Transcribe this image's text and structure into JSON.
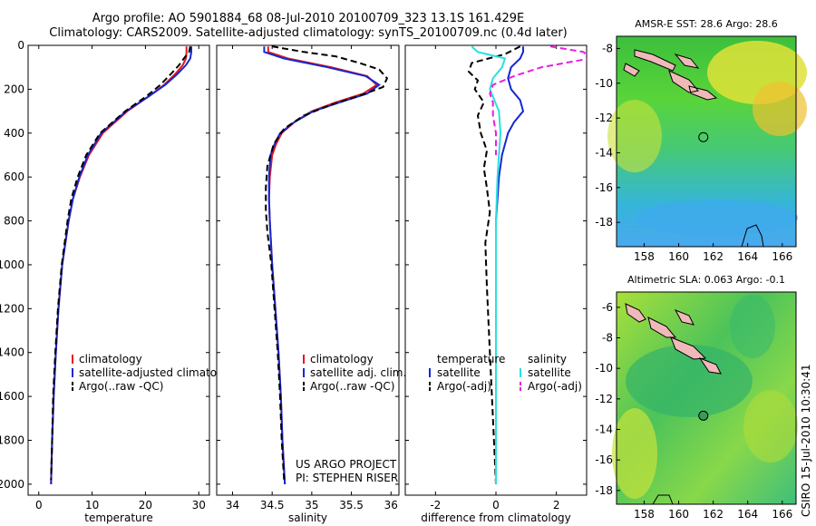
{
  "header": {
    "line1": "Argo profile: AO 5901884_68 08-Jul-2010 20100709_323 13.1S 161.429E",
    "line2": "Climatology: CARS2009. Satellite-adjusted climatology: synTS_20100709.nc (0.4d later)"
  },
  "colors": {
    "climatology": "#e8141c",
    "satellite": "#1428d2",
    "argo": "#000000",
    "salinity_sat": "#2ae0e0",
    "salinity_argo": "#e81ee0"
  },
  "chart_data": [
    {
      "type": "line",
      "panel": "temperature",
      "xlabel": "temperature",
      "ylabel": "",
      "xlim": [
        -2,
        32
      ],
      "ylim": [
        2050,
        0
      ],
      "xticks": [
        0,
        10,
        20,
        30
      ],
      "yticks": [
        0,
        200,
        400,
        600,
        800,
        1000,
        1200,
        1400,
        1600,
        1800,
        2000
      ],
      "legend": [
        "climatology",
        "satellite-adjusted climatology",
        "Argo(..raw -QC)"
      ],
      "legend_position": "lower-center",
      "series": [
        {
          "name": "climatology",
          "color": "#e8141c",
          "style": "solid",
          "depth": [
            5,
            30,
            60,
            90,
            130,
            180,
            230,
            300,
            400,
            500,
            600,
            700,
            800,
            1000,
            1200,
            1400,
            1600,
            1800,
            2000
          ],
          "values": [
            27.7,
            27.7,
            27.6,
            27.0,
            25.6,
            23.5,
            20.8,
            16.6,
            12.0,
            9.4,
            7.7,
            6.4,
            5.6,
            4.4,
            3.7,
            3.2,
            2.8,
            2.5,
            2.3
          ]
        },
        {
          "name": "satellite-adjusted climatology",
          "color": "#1428d2",
          "style": "solid",
          "depth": [
            5,
            30,
            60,
            90,
            130,
            180,
            230,
            300,
            400,
            500,
            600,
            700,
            800,
            1000,
            1200,
            1400,
            1600,
            1800,
            2000
          ],
          "values": [
            28.6,
            28.6,
            28.4,
            27.6,
            26.0,
            23.7,
            20.8,
            16.4,
            11.7,
            9.2,
            7.6,
            6.4,
            5.6,
            4.4,
            3.7,
            3.2,
            2.8,
            2.5,
            2.3
          ]
        },
        {
          "name": "Argo(..raw -QC)",
          "color": "#000000",
          "style": "dash",
          "depth": [
            5,
            30,
            60,
            90,
            130,
            180,
            230,
            300,
            400,
            500,
            600,
            700,
            800,
            1000,
            1200,
            1400,
            1600,
            1800,
            1980
          ],
          "values": [
            28.4,
            28.2,
            27.2,
            26.3,
            24.8,
            22.8,
            20.3,
            16.2,
            11.5,
            8.9,
            7.3,
            6.1,
            5.4,
            4.3,
            3.6,
            3.1,
            2.7,
            2.5,
            2.3
          ]
        }
      ]
    },
    {
      "type": "line",
      "panel": "salinity",
      "xlabel": "salinity",
      "ylabel": "",
      "xlim": [
        33.8,
        36.1
      ],
      "ylim": [
        2050,
        0
      ],
      "xticks": [
        34,
        34.5,
        35,
        35.5,
        36
      ],
      "yticks": [
        0,
        200,
        400,
        600,
        800,
        1000,
        1200,
        1400,
        1600,
        1800,
        2000
      ],
      "legend": [
        "climatology",
        "satellite adj. clim.",
        "Argo(..raw -QC)"
      ],
      "legend_position": "lower-right",
      "annotations": [
        "US ARGO PROJECT",
        "PI: STEPHEN RISER"
      ],
      "series": [
        {
          "name": "climatology",
          "color": "#e8141c",
          "style": "solid",
          "depth": [
            5,
            30,
            60,
            100,
            140,
            180,
            220,
            260,
            300,
            350,
            400,
            450,
            500,
            600,
            700,
            800,
            1000,
            1200,
            1400,
            1600,
            1800,
            2000
          ],
          "values": [
            34.45,
            34.45,
            34.7,
            35.25,
            35.7,
            35.82,
            35.65,
            35.3,
            35.0,
            34.78,
            34.62,
            34.55,
            34.5,
            34.47,
            34.46,
            34.47,
            34.5,
            34.54,
            34.58,
            34.61,
            34.63,
            34.66
          ]
        },
        {
          "name": "satellite adj. clim.",
          "color": "#1428d2",
          "style": "solid",
          "depth": [
            5,
            30,
            60,
            100,
            140,
            180,
            220,
            260,
            300,
            350,
            400,
            450,
            500,
            600,
            700,
            800,
            1000,
            1200,
            1400,
            1600,
            1800,
            2000
          ],
          "values": [
            34.4,
            34.4,
            34.65,
            35.2,
            35.68,
            35.85,
            35.7,
            35.35,
            35.02,
            34.78,
            34.6,
            34.53,
            34.48,
            34.46,
            34.46,
            34.47,
            34.5,
            34.54,
            34.58,
            34.61,
            34.63,
            34.66
          ]
        },
        {
          "name": "Argo(..raw -QC)",
          "color": "#000000",
          "style": "dash",
          "depth": [
            5,
            30,
            50,
            80,
            110,
            150,
            190,
            230,
            270,
            320,
            380,
            450,
            550,
            650,
            750,
            850,
            1000,
            1200,
            1400,
            1600,
            1800,
            1980
          ],
          "values": [
            34.5,
            34.9,
            35.3,
            35.6,
            35.85,
            35.95,
            35.9,
            35.6,
            35.25,
            34.9,
            34.65,
            34.52,
            34.44,
            34.42,
            34.42,
            34.44,
            34.49,
            34.53,
            34.57,
            34.6,
            34.62,
            34.65
          ]
        }
      ]
    },
    {
      "type": "line",
      "panel": "difference",
      "xlabel": "difference from climatology",
      "ylabel": "",
      "xlim": [
        -3,
        3
      ],
      "ylim": [
        2050,
        0
      ],
      "xticks": [
        -2,
        0,
        2
      ],
      "yticks": [
        0,
        200,
        400,
        600,
        800,
        1000,
        1200,
        1400,
        1600,
        1800,
        2000
      ],
      "legend_groups": [
        {
          "heading": "temperature",
          "items": [
            "satellite",
            "Argo(-adj)"
          ]
        },
        {
          "heading": "salinity",
          "items": [
            "satellite",
            "Argo(-adj)"
          ]
        }
      ],
      "series": [
        {
          "name": "temperature satellite",
          "color": "#1428d2",
          "style": "solid",
          "depth": [
            5,
            30,
            60,
            100,
            150,
            200,
            250,
            300,
            350,
            400,
            450,
            500,
            600,
            700,
            800,
            1000,
            1200,
            1600,
            2000
          ],
          "values": [
            0.9,
            0.9,
            0.8,
            0.5,
            0.4,
            0.5,
            0.8,
            0.9,
            0.6,
            0.4,
            0.3,
            0.2,
            0.1,
            0.05,
            0.0,
            0.0,
            0.0,
            0.0,
            0.0
          ]
        },
        {
          "name": "temperature Argo(-adj)",
          "color": "#000000",
          "style": "dash",
          "depth": [
            5,
            40,
            80,
            120,
            160,
            200,
            260,
            320,
            400,
            480,
            560,
            650,
            760,
            900,
            1100,
            1400,
            1700,
            2000
          ],
          "values": [
            0.8,
            0.3,
            -0.8,
            -0.9,
            -0.6,
            -0.7,
            -0.4,
            -0.6,
            -0.5,
            -0.3,
            -0.4,
            -0.3,
            -0.2,
            -0.35,
            -0.3,
            -0.2,
            -0.1,
            0.0
          ]
        },
        {
          "name": "salinity satellite",
          "color": "#2ae0e0",
          "style": "solid",
          "depth": [
            5,
            30,
            60,
            100,
            150,
            200,
            300,
            400,
            500,
            600,
            800,
            1000,
            1500,
            2000
          ],
          "values": [
            -0.8,
            -0.6,
            0.3,
            0.2,
            -0.1,
            -0.2,
            0.1,
            0.15,
            0.1,
            0.05,
            0.0,
            0.0,
            0.0,
            0.0
          ]
        },
        {
          "name": "salinity Argo(-adj)",
          "color": "#e81ee0",
          "style": "dash",
          "depth": [
            5,
            30,
            60,
            100,
            140,
            180,
            220,
            260,
            320,
            400,
            500
          ],
          "values": [
            1.8,
            2.9,
            3.1,
            1.5,
            0.6,
            -0.1,
            -0.2,
            -0.1,
            -0.1,
            0.0,
            0.0
          ]
        }
      ]
    }
  ],
  "maps": [
    {
      "title": "AMSR-E SST: 28.6 Argo: 28.6",
      "xticks": [
        158,
        160,
        162,
        164,
        166
      ],
      "yticks": [
        -8,
        -10,
        -12,
        -14,
        -16,
        -18
      ],
      "lon_range": [
        156.4,
        166.8
      ],
      "lat_range": [
        -19.4,
        -7.3
      ],
      "float_lon": 161.43,
      "float_lat": -13.1
    },
    {
      "title": "Altimetric SLA: 0.063 Argo: -0.1",
      "xticks": [
        158,
        160,
        162,
        164,
        166
      ],
      "yticks": [
        -6,
        -8,
        -10,
        -12,
        -14,
        -16,
        -18
      ],
      "lon_range": [
        156.4,
        166.8
      ],
      "lat_range": [
        -18.9,
        -5.0
      ],
      "float_lon": 161.43,
      "float_lat": -13.1
    }
  ],
  "credit": "CSIRO 15-Jul-2010 10:30:41"
}
